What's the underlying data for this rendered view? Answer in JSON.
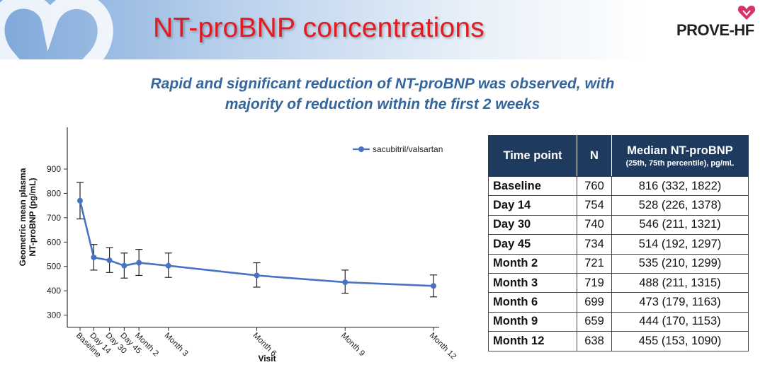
{
  "slide": {
    "title": "NT-proBNP concentrations",
    "subtitle_line1": "Rapid and significant reduction of NT-proBNP was observed, with",
    "subtitle_line2": "majority of reduction within the first 2 weeks",
    "logo_text": "PROVE-HF"
  },
  "colors": {
    "title": "#e31b23",
    "subtitle": "#34659c",
    "series": "#4a72c4",
    "table_header": "#1f3a5f"
  },
  "chart_data": {
    "type": "line",
    "title": "",
    "xlabel": "Visit",
    "ylabel_line1": "Geometric mean plasma",
    "ylabel_line2": "NT-proBNP (pg/mL)",
    "ylim": [
      250,
      950
    ],
    "yticks": [
      300,
      400,
      500,
      600,
      700,
      800,
      900
    ],
    "x_days": [
      0,
      14,
      30,
      45,
      60,
      90,
      180,
      270,
      360
    ],
    "categories": [
      "Baseline",
      "Day 14",
      "Day 30",
      "Day 45",
      "Month 2",
      "Month 3",
      "Month 6",
      "Month 9",
      "Month 12"
    ],
    "grid": false,
    "legend_position": "top-right",
    "series": [
      {
        "name": "sacubitril/valsartan",
        "values": [
          770,
          537,
          525,
          503,
          515,
          503,
          463,
          435,
          420
        ],
        "error_low": [
          695,
          485,
          475,
          452,
          463,
          455,
          415,
          390,
          375
        ],
        "error_high": [
          845,
          590,
          577,
          555,
          570,
          555,
          515,
          485,
          465
        ]
      }
    ]
  },
  "table": {
    "headers": {
      "timepoint": "Time point",
      "n": "N",
      "median": "Median NT-proBNP",
      "median_sub": "(25th, 75th percentile), pg/mL"
    },
    "rows": [
      {
        "timepoint": "Baseline",
        "n": "760",
        "median": "816 (332, 1822)"
      },
      {
        "timepoint": "Day 14",
        "n": "754",
        "median": "528 (226, 1378)"
      },
      {
        "timepoint": "Day 30",
        "n": "740",
        "median": "546 (211, 1321)"
      },
      {
        "timepoint": "Day 45",
        "n": "734",
        "median": "514 (192, 1297)"
      },
      {
        "timepoint": "Month 2",
        "n": "721",
        "median": "535 (210, 1299)"
      },
      {
        "timepoint": "Month 3",
        "n": "719",
        "median": "488 (211, 1315)"
      },
      {
        "timepoint": "Month 6",
        "n": "699",
        "median": "473 (179, 1163)"
      },
      {
        "timepoint": "Month 9",
        "n": "659",
        "median": "444 (170, 1153)"
      },
      {
        "timepoint": "Month 12",
        "n": "638",
        "median": "455 (153, 1090)"
      }
    ]
  }
}
